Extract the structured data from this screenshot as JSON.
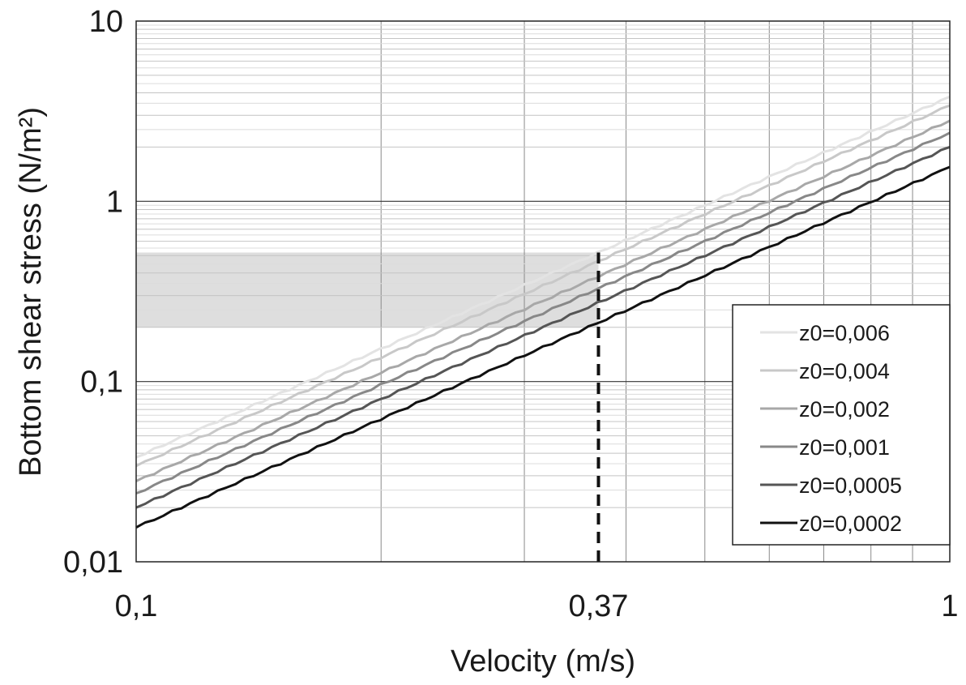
{
  "chart_data": {
    "type": "line",
    "xlabel": "Velocity (m/s)",
    "ylabel": "Bottom shear stress (N/m²)",
    "x_scale": "log",
    "y_scale": "log",
    "xlim": [
      0.1,
      1
    ],
    "ylim": [
      0.01,
      10
    ],
    "x_ticks": [
      0.1,
      0.37,
      1
    ],
    "x_tick_labels": [
      "0,1",
      "0,37",
      "1"
    ],
    "y_ticks": [
      0.01,
      0.1,
      1,
      10
    ],
    "y_tick_labels": [
      "0,01",
      "0,1",
      "1",
      "10"
    ],
    "grid": true,
    "legend_position": "bottom-right",
    "series": [
      {
        "name": "z0=0,006",
        "color": "#e3e3e3",
        "x": [
          0.1,
          1
        ],
        "y": [
          0.038,
          3.8
        ]
      },
      {
        "name": "z0=0,004",
        "color": "#c8c8c8",
        "x": [
          0.1,
          1
        ],
        "y": [
          0.034,
          3.4
        ]
      },
      {
        "name": "z0=0,002",
        "color": "#a8a8a8",
        "x": [
          0.1,
          1
        ],
        "y": [
          0.028,
          2.8
        ]
      },
      {
        "name": "z0=0,001",
        "color": "#888888",
        "x": [
          0.1,
          1
        ],
        "y": [
          0.024,
          2.4
        ]
      },
      {
        "name": "z0=0,0005",
        "color": "#555555",
        "x": [
          0.1,
          1
        ],
        "y": [
          0.02,
          2.0
        ]
      },
      {
        "name": "z0=0,0002",
        "color": "#111111",
        "x": [
          0.1,
          1
        ],
        "y": [
          0.0155,
          1.55
        ]
      }
    ],
    "annotations": {
      "shaded_band": {
        "x": [
          0.1,
          0.37
        ],
        "y": [
          0.2,
          0.52
        ],
        "color": "#dedede"
      },
      "vertical_dashed_line": {
        "x": 0.37,
        "y": [
          0.01,
          0.52
        ],
        "color": "#111111"
      }
    }
  }
}
